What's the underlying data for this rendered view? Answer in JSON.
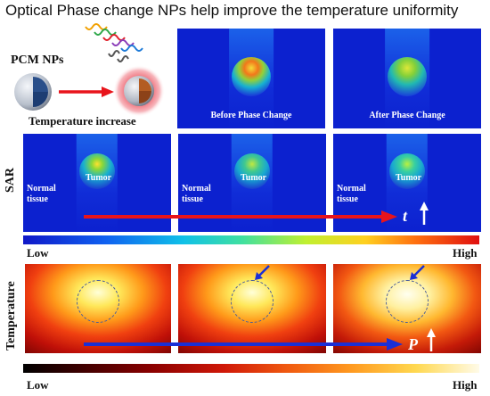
{
  "title": "Optical Phase change NPs help improve the temperature uniformity",
  "pcm_label": "PCM NPs",
  "temperature_increase": "Temperature increase",
  "top_panels": [
    "Before Phase Change",
    "After Phase Change"
  ],
  "sar_label": "SAR",
  "temperature_label": "Temperature",
  "tumor_label": "Tumor",
  "normal_tissue": "Normal\ntissue",
  "arrow_t": "t",
  "arrow_p": "P",
  "scale_low": "Low",
  "scale_high": "High",
  "colors": {
    "sar_bg": "#0c21cf",
    "arrow_red": "#e8141b",
    "arrow_blue": "#1a2fd6"
  }
}
